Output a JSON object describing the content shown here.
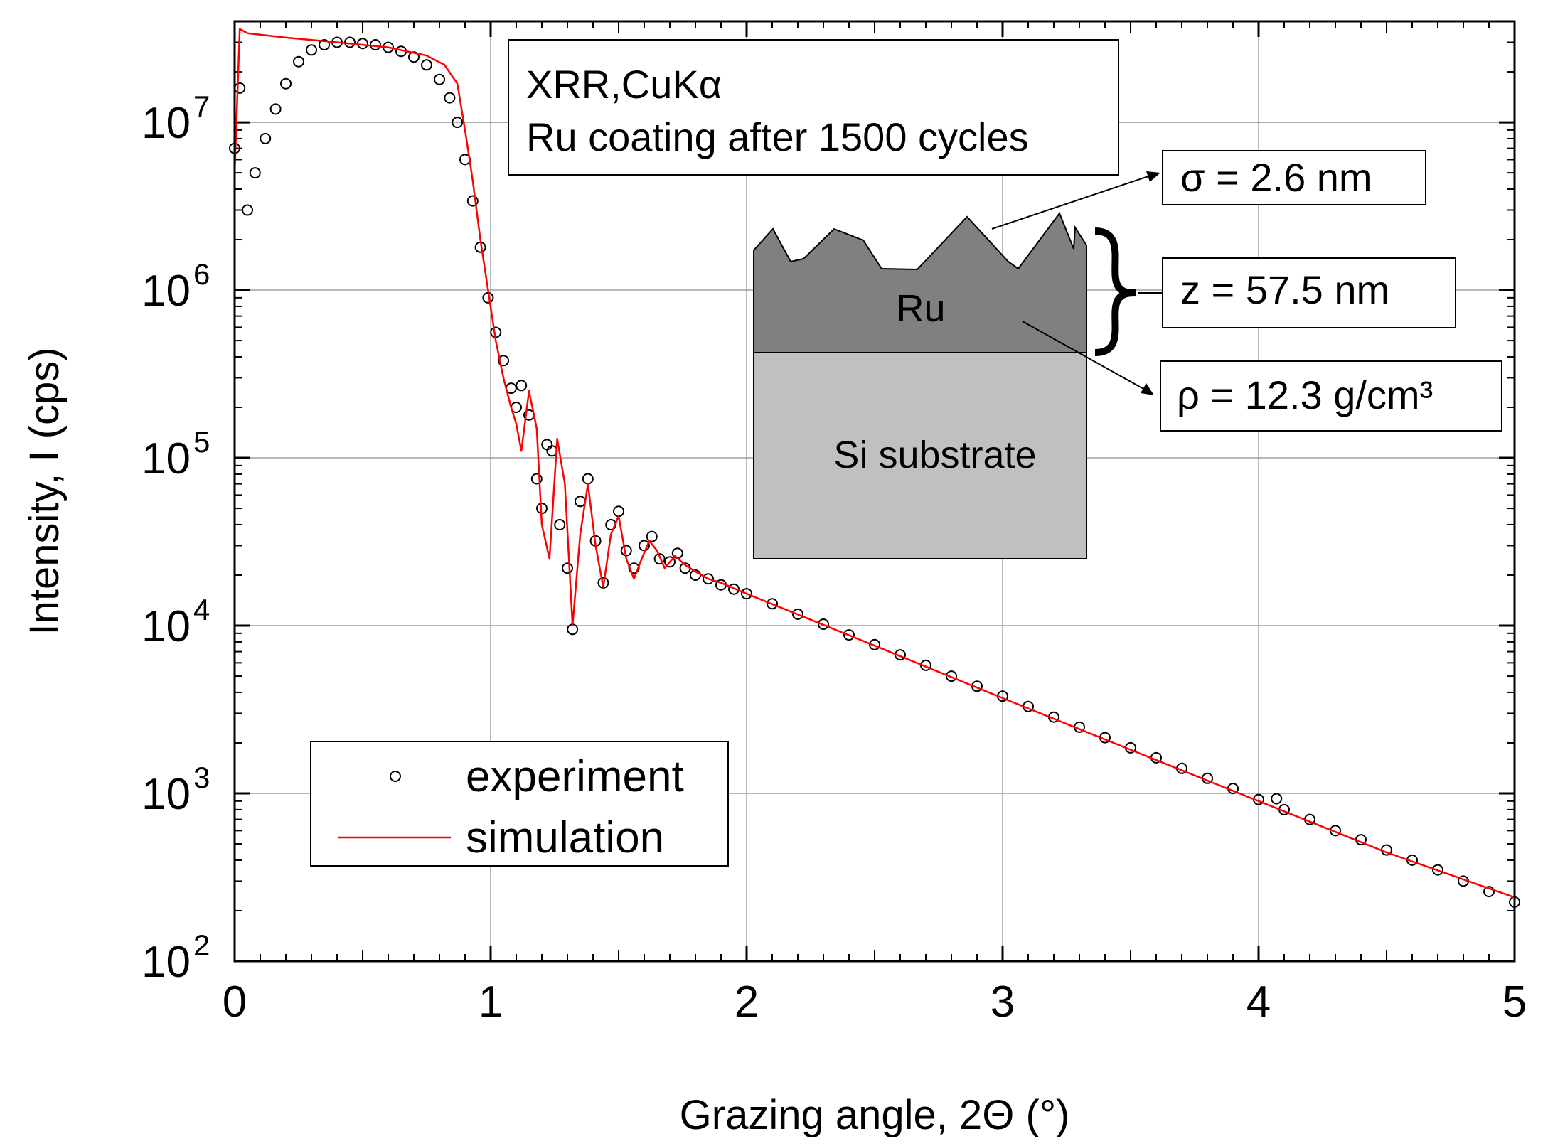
{
  "chart_data": {
    "type": "scatter",
    "title": "",
    "xlabel": "Grazing angle, 2Θ (°)",
    "ylabel": "Intensity, I (cps)",
    "x_scale": "linear",
    "y_scale": "log",
    "xlim": [
      0,
      5
    ],
    "ylim": [
      100,
      40000000
    ],
    "x_ticks": [
      0,
      1,
      2,
      3,
      4,
      5
    ],
    "x_tick_labels": [
      "0",
      "1",
      "2",
      "3",
      "4",
      "5"
    ],
    "y_ticks": [
      100,
      1000,
      10000,
      100000,
      1000000,
      10000000
    ],
    "y_tick_labels": [
      {
        "base": "10",
        "exp": "2"
      },
      {
        "base": "10",
        "exp": "3"
      },
      {
        "base": "10",
        "exp": "4"
      },
      {
        "base": "10",
        "exp": "5"
      },
      {
        "base": "10",
        "exp": "6"
      },
      {
        "base": "10",
        "exp": "7"
      }
    ],
    "grid": true,
    "legend_position": "bottom-left",
    "series": [
      {
        "name": "experiment",
        "marker": "open-circle",
        "color": "#000000",
        "x": [
          0.0,
          0.02,
          0.05,
          0.08,
          0.12,
          0.16,
          0.2,
          0.25,
          0.3,
          0.35,
          0.4,
          0.45,
          0.5,
          0.55,
          0.6,
          0.65,
          0.7,
          0.75,
          0.8,
          0.84,
          0.87,
          0.9,
          0.93,
          0.96,
          0.99,
          1.02,
          1.05,
          1.08,
          1.1,
          1.12,
          1.15,
          1.18,
          1.2,
          1.22,
          1.24,
          1.27,
          1.3,
          1.32,
          1.35,
          1.38,
          1.41,
          1.44,
          1.47,
          1.5,
          1.53,
          1.56,
          1.6,
          1.63,
          1.66,
          1.7,
          1.73,
          1.76,
          1.8,
          1.85,
          1.9,
          1.95,
          2.0,
          2.1,
          2.2,
          2.3,
          2.4,
          2.5,
          2.6,
          2.7,
          2.8,
          2.9,
          3.0,
          3.1,
          3.2,
          3.3,
          3.4,
          3.5,
          3.6,
          3.7,
          3.8,
          3.9,
          4.0,
          4.07,
          4.1,
          4.2,
          4.3,
          4.4,
          4.5,
          4.6,
          4.7,
          4.8,
          4.9,
          5.0
        ],
        "y": [
          7000000,
          16000000,
          3000000,
          5000000,
          8000000,
          12000000,
          17000000,
          23000000,
          27000000,
          29000000,
          30000000,
          30000000,
          29500000,
          29000000,
          28000000,
          26500000,
          24500000,
          22000000,
          18000000,
          14000000,
          10000000,
          6000000,
          3400000,
          1800000,
          900000,
          560000,
          380000,
          260000,
          200000,
          270000,
          180000,
          75000,
          50000,
          120000,
          110000,
          40000,
          22000,
          9500,
          55000,
          75000,
          32000,
          18000,
          40000,
          48000,
          28000,
          22000,
          30000,
          34000,
          25000,
          24000,
          27000,
          22000,
          20000,
          19000,
          17500,
          16500,
          15500,
          13500,
          11700,
          10200,
          8800,
          7700,
          6700,
          5800,
          5000,
          4350,
          3800,
          3300,
          2850,
          2480,
          2150,
          1870,
          1630,
          1410,
          1230,
          1070,
          920,
          930,
          800,
          700,
          600,
          530,
          460,
          400,
          350,
          300,
          260,
          225
        ]
      },
      {
        "name": "simulation",
        "color": "#ff0000",
        "x": [
          0.0,
          0.02,
          0.05,
          0.2,
          0.4,
          0.6,
          0.75,
          0.82,
          0.87,
          0.9,
          0.93,
          0.96,
          0.99,
          1.02,
          1.05,
          1.08,
          1.1,
          1.12,
          1.15,
          1.18,
          1.2,
          1.23,
          1.26,
          1.29,
          1.32,
          1.35,
          1.38,
          1.41,
          1.44,
          1.47,
          1.5,
          1.53,
          1.56,
          1.59,
          1.62,
          1.65,
          1.68,
          1.72,
          1.76,
          1.8,
          1.85,
          1.9,
          2.0,
          2.5,
          3.0,
          3.5,
          4.0,
          4.5,
          5.0
        ],
        "y": [
          5000000,
          36000000,
          34000000,
          32000000,
          30000000,
          28000000,
          25000000,
          22000000,
          17000000,
          9000000,
          4500000,
          2000000,
          1000000,
          500000,
          300000,
          200000,
          160000,
          110000,
          250000,
          150000,
          40000,
          25000,
          130000,
          70000,
          10000,
          35000,
          70000,
          30000,
          17000,
          35000,
          45000,
          25000,
          19000,
          25000,
          32000,
          28000,
          22000,
          26000,
          23000,
          21000,
          19000,
          18000,
          15500,
          7600,
          3700,
          1820,
          900,
          445,
          240
        ]
      }
    ],
    "legend": [
      {
        "label": "experiment",
        "marker": "open-circle"
      },
      {
        "label": "simulation",
        "marker": "line"
      }
    ],
    "annotations": {
      "info_lines": [
        "XRR,CuKα",
        "Ru coating after 1500 cycles"
      ],
      "sigma": "σ = 2.6 nm",
      "thickness": "z = 57.5 nm",
      "density": "ρ = 12.3 g/cm³",
      "layer_top": "Ru",
      "layer_bottom": "Si substrate"
    },
    "colors": {
      "ru_layer": "#808080",
      "si_layer": "#c0c0c0",
      "grid": "#a0a0a0",
      "simulation": "#ff0000"
    }
  }
}
